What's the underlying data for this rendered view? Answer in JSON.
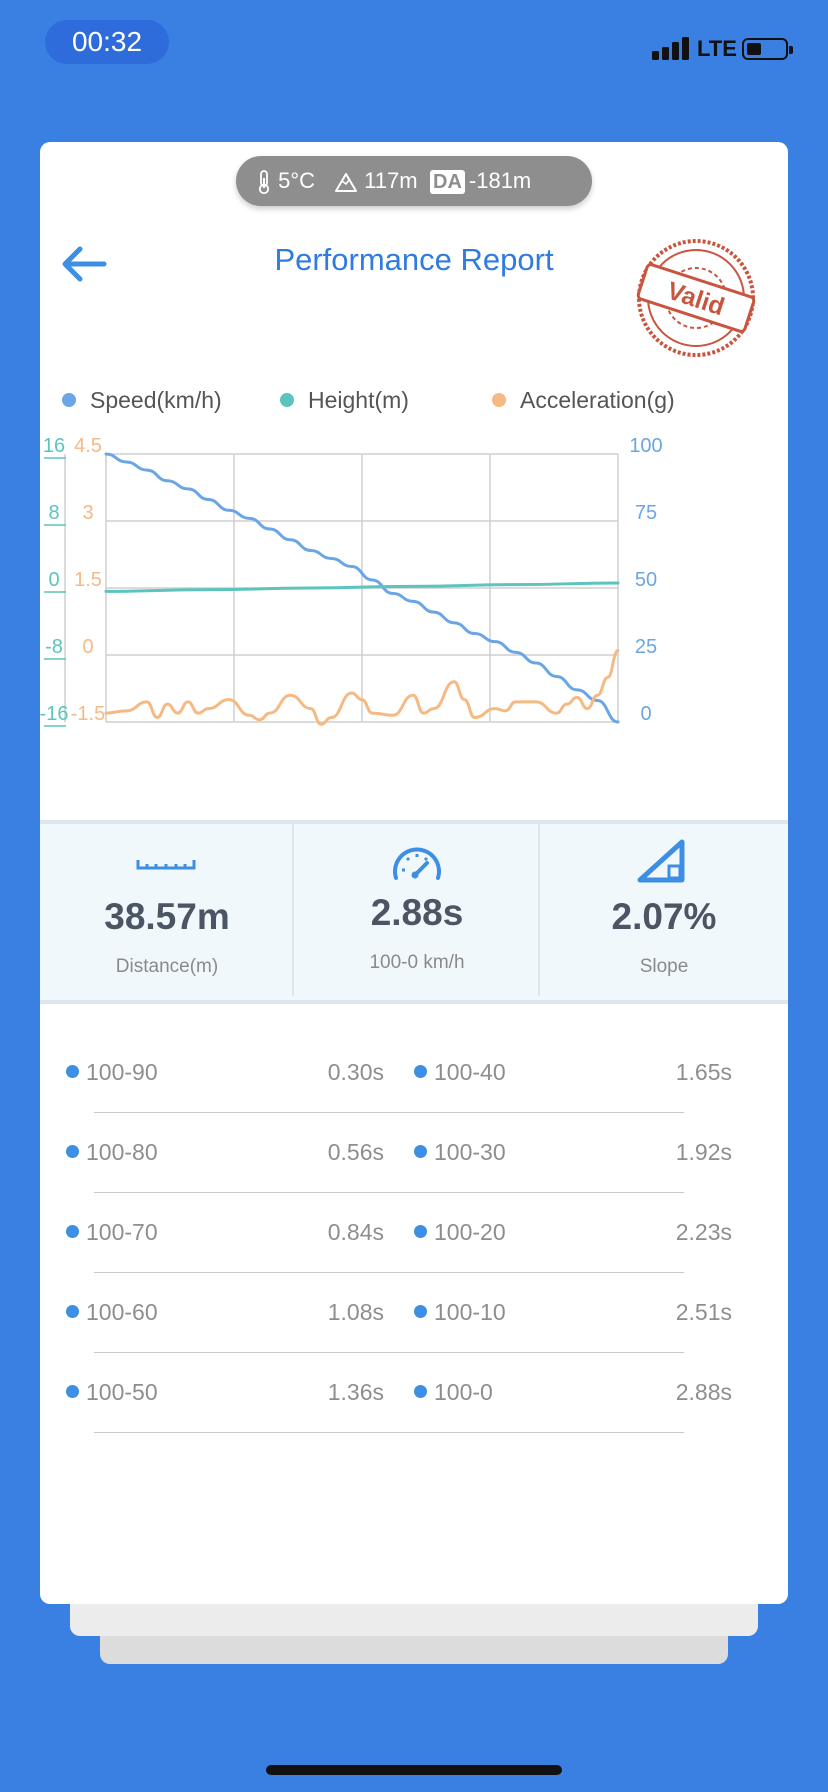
{
  "status_bar": {
    "time": "00:32",
    "network": "LTE"
  },
  "environment": {
    "temperature": "5°C",
    "altitude": "117m",
    "da_badge": "DA",
    "density_altitude": "-181m"
  },
  "header": {
    "title": "Performance Report",
    "stamp_text": "Valid"
  },
  "legend": [
    {
      "label": "Speed(km/h)",
      "color": "#6aa6e6"
    },
    {
      "label": "Height(m)",
      "color": "#5cc4bc"
    },
    {
      "label": "Acceleration(g)",
      "color": "#f5b984"
    }
  ],
  "chart_data": {
    "type": "line",
    "series": [
      {
        "name": "Speed(km/h)",
        "axis": "right",
        "color": "#6aa6e6",
        "x": [
          0,
          0.04,
          0.08,
          0.12,
          0.16,
          0.2,
          0.24,
          0.28,
          0.32,
          0.36,
          0.4,
          0.44,
          0.48,
          0.52,
          0.56,
          0.6,
          0.64,
          0.68,
          0.72,
          0.76,
          0.8,
          0.84,
          0.88,
          0.92,
          0.96,
          1.0
        ],
        "y": [
          100,
          97,
          94,
          90,
          87,
          83,
          79,
          76,
          72,
          68,
          64,
          61,
          58,
          53,
          48,
          45,
          41,
          37,
          33,
          30,
          26,
          22,
          17,
          12,
          8,
          0
        ]
      },
      {
        "name": "Height(m)",
        "axis": "left-outer",
        "color": "#5cc4bc",
        "x": [
          0,
          0.2,
          0.4,
          0.6,
          0.8,
          1.0
        ],
        "y": [
          -0.4,
          -0.2,
          0.0,
          0.2,
          0.4,
          0.6
        ]
      },
      {
        "name": "Acceleration(g)",
        "axis": "left-inner",
        "color": "#f5b984",
        "x": [
          0,
          0.04,
          0.08,
          0.1,
          0.12,
          0.14,
          0.16,
          0.18,
          0.2,
          0.24,
          0.28,
          0.3,
          0.32,
          0.36,
          0.4,
          0.42,
          0.44,
          0.48,
          0.5,
          0.52,
          0.56,
          0.6,
          0.62,
          0.64,
          0.68,
          0.7,
          0.72,
          0.76,
          0.78,
          0.8,
          0.84,
          0.88,
          0.9,
          0.92,
          0.94,
          0.96,
          0.98,
          1.0
        ],
        "y": [
          -1.3,
          -1.25,
          -1.05,
          -1.4,
          -1.1,
          -1.3,
          -1.05,
          -1.3,
          -1.2,
          -1.0,
          -1.35,
          -1.45,
          -1.3,
          -0.9,
          -1.2,
          -1.55,
          -1.4,
          -0.85,
          -1.0,
          -1.3,
          -1.35,
          -0.9,
          -1.3,
          -1.2,
          -0.6,
          -1.0,
          -1.4,
          -1.2,
          -1.25,
          -1.05,
          -1.05,
          -1.3,
          -1.1,
          -0.95,
          -1.2,
          -0.9,
          -0.5,
          0.1
        ]
      }
    ],
    "axes": {
      "left_outer": {
        "ticks": [
          "16",
          "8",
          "0",
          "-8",
          "-16"
        ],
        "range": [
          -16,
          16
        ],
        "color": "#5cc4bc"
      },
      "left_inner": {
        "ticks": [
          "4.5",
          "3",
          "1.5",
          "0",
          "-1.5"
        ],
        "range": [
          -1.5,
          4.5
        ],
        "color": "#f5b984"
      },
      "right": {
        "ticks": [
          "100",
          "75",
          "50",
          "25",
          "0"
        ],
        "range": [
          0,
          100
        ],
        "color": "#6aa6e6"
      }
    },
    "grid": true
  },
  "stats": [
    {
      "icon": "ruler-icon",
      "value": "38.57m",
      "label": "Distance(m)"
    },
    {
      "icon": "speedometer-icon",
      "value": "2.88s",
      "label": "100-0 km/h"
    },
    {
      "icon": "slope-icon",
      "value": "2.07%",
      "label": "Slope"
    }
  ],
  "splits": [
    {
      "left_label": "100-90",
      "left_value": "0.30s",
      "right_label": "100-40",
      "right_value": "1.65s"
    },
    {
      "left_label": "100-80",
      "left_value": "0.56s",
      "right_label": "100-30",
      "right_value": "1.92s"
    },
    {
      "left_label": "100-70",
      "left_value": "0.84s",
      "right_label": "100-20",
      "right_value": "2.23s"
    },
    {
      "left_label": "100-60",
      "left_value": "1.08s",
      "right_label": "100-10",
      "right_value": "2.51s"
    },
    {
      "left_label": "100-50",
      "left_value": "1.36s",
      "right_label": "100-0",
      "right_value": "2.88s"
    }
  ]
}
